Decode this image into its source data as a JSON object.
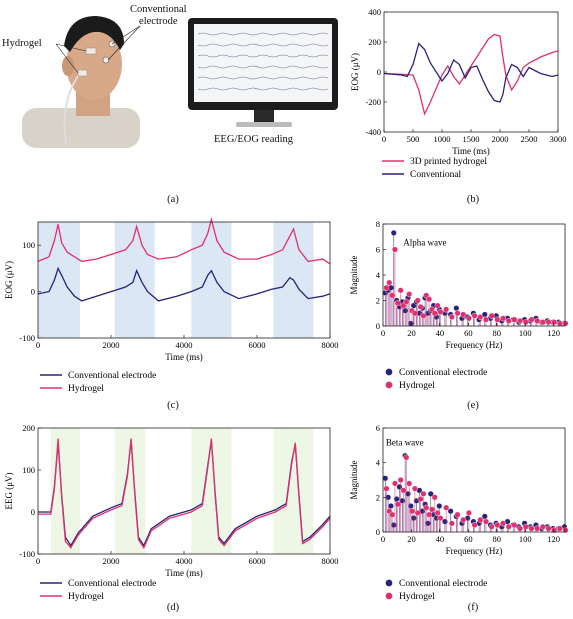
{
  "panel_a": {
    "label_hydrogel": "Hydrogel",
    "label_conventional": "Conventional\nelectrode",
    "label_reading": "EEG/EOG reading",
    "caption": "(a)"
  },
  "captions": {
    "b": "(b)",
    "c": "(c)",
    "d": "(d)",
    "e": "(e)",
    "f": "(f)"
  },
  "colors": {
    "pink": "#e0306e",
    "navy": "#28237a",
    "blue_band": "#dce7f6",
    "green_band": "#eef7e6"
  },
  "chart_data": [
    {
      "id": "b",
      "type": "line",
      "xlabel": "Time (ms)",
      "ylabel": "EOG (μV)",
      "xlim": [
        0,
        3000
      ],
      "ylim": [
        -400,
        400
      ],
      "xticks": [
        0,
        500,
        1000,
        1500,
        2000,
        2500,
        3000
      ],
      "yticks": [
        -400,
        -200,
        0,
        200,
        400
      ],
      "series": [
        {
          "name": "3D printed hydrogel",
          "color": "#e0306e",
          "x": [
            0,
            300,
            500,
            600,
            700,
            800,
            1000,
            1100,
            1200,
            1300,
            1400,
            1500,
            1600,
            1700,
            1800,
            1900,
            1950,
            2000,
            2050,
            2100,
            2200,
            2300,
            2400,
            2500,
            2700,
            2900,
            3000
          ],
          "y": [
            -10,
            -15,
            -20,
            -120,
            -280,
            -200,
            -20,
            40,
            -30,
            -80,
            -20,
            40,
            100,
            160,
            220,
            250,
            245,
            240,
            100,
            -20,
            -120,
            -60,
            30,
            60,
            100,
            130,
            140
          ]
        },
        {
          "name": "Conventional",
          "color": "#28237a",
          "x": [
            0,
            300,
            400,
            500,
            600,
            700,
            800,
            1000,
            1100,
            1200,
            1300,
            1400,
            1500,
            1600,
            1700,
            1800,
            1900,
            2000,
            2050,
            2100,
            2200,
            2300,
            2400,
            2500,
            2700,
            2900,
            3000
          ],
          "y": [
            -10,
            -20,
            -30,
            50,
            190,
            150,
            60,
            -60,
            -10,
            80,
            50,
            -40,
            30,
            40,
            -50,
            -130,
            -190,
            -200,
            -150,
            -40,
            50,
            30,
            -30,
            30,
            -10,
            -30,
            -20
          ]
        }
      ]
    },
    {
      "id": "c",
      "type": "line",
      "xlabel": "Time (ms)",
      "ylabel": "EOG (μV)",
      "xlim": [
        0,
        8000
      ],
      "ylim": [
        -100,
        150
      ],
      "xticks": [
        0,
        2000,
        4000,
        6000,
        8000
      ],
      "yticks": [
        -100,
        0,
        100
      ],
      "bands": [
        [
          0,
          1150
        ],
        [
          2100,
          3200
        ],
        [
          4200,
          5300
        ],
        [
          6450,
          7550
        ]
      ],
      "series": [
        {
          "name": "Conventional electrode",
          "color": "#28237a",
          "x": [
            0,
            300,
            450,
            550,
            650,
            800,
            1000,
            1200,
            1600,
            2000,
            2400,
            2600,
            2700,
            2850,
            3000,
            3300,
            3800,
            4200,
            4500,
            4650,
            4750,
            4900,
            5100,
            5500,
            6000,
            6400,
            6700,
            6900,
            7000,
            7150,
            7400,
            7800,
            8000
          ],
          "y": [
            -5,
            0,
            25,
            50,
            35,
            10,
            -10,
            -20,
            -10,
            0,
            10,
            20,
            45,
            20,
            0,
            -20,
            -10,
            0,
            10,
            35,
            45,
            20,
            0,
            -15,
            -5,
            5,
            10,
            30,
            25,
            5,
            -15,
            -10,
            -5
          ]
        },
        {
          "name": "Hydrogel",
          "color": "#e0306e",
          "x": [
            0,
            300,
            450,
            550,
            650,
            800,
            1000,
            1200,
            1600,
            2000,
            2400,
            2600,
            2700,
            2850,
            3000,
            3300,
            3800,
            4200,
            4500,
            4650,
            4750,
            4900,
            5100,
            5500,
            6000,
            6400,
            6700,
            6900,
            7000,
            7150,
            7400,
            7800,
            8000
          ],
          "y": [
            65,
            75,
            110,
            145,
            105,
            85,
            75,
            65,
            70,
            80,
            90,
            110,
            140,
            100,
            80,
            70,
            75,
            90,
            100,
            125,
            155,
            110,
            85,
            70,
            70,
            80,
            90,
            120,
            135,
            90,
            65,
            70,
            60
          ]
        }
      ]
    },
    {
      "id": "d",
      "type": "line",
      "xlabel": "Time (ms)",
      "ylabel": "EEG (μV)",
      "xlim": [
        0,
        8000
      ],
      "ylim": [
        -100,
        200
      ],
      "xticks": [
        0,
        2000,
        4000,
        6000,
        8000
      ],
      "yticks": [
        -100,
        0,
        100,
        200
      ],
      "bands": [
        [
          350,
          1150
        ],
        [
          2100,
          2950
        ],
        [
          4200,
          5300
        ],
        [
          6450,
          7550
        ]
      ],
      "series": [
        {
          "name": "Conventional electrode",
          "color": "#28237a",
          "x": [
            0,
            350,
            450,
            550,
            650,
            750,
            900,
            1100,
            1500,
            2000,
            2300,
            2450,
            2550,
            2650,
            2750,
            2900,
            3100,
            3600,
            4200,
            4500,
            4650,
            4750,
            4850,
            4950,
            5100,
            5400,
            6000,
            6500,
            6800,
            6950,
            7050,
            7150,
            7250,
            7450,
            7800,
            8000
          ],
          "y": [
            0,
            0,
            60,
            165,
            40,
            -60,
            -80,
            -50,
            -10,
            10,
            20,
            90,
            170,
            50,
            -60,
            -80,
            -40,
            -10,
            5,
            20,
            110,
            170,
            50,
            -60,
            -75,
            -40,
            -10,
            5,
            20,
            120,
            160,
            40,
            -70,
            -60,
            -30,
            -10
          ]
        },
        {
          "name": "Hydrogel",
          "color": "#e0306e",
          "x": [
            0,
            350,
            450,
            550,
            650,
            750,
            900,
            1100,
            1500,
            2000,
            2300,
            2450,
            2550,
            2650,
            2750,
            2900,
            3100,
            3600,
            4200,
            4500,
            4650,
            4750,
            4850,
            4950,
            5100,
            5400,
            6000,
            6500,
            6800,
            6950,
            7050,
            7150,
            7250,
            7450,
            7800,
            8000
          ],
          "y": [
            -5,
            -5,
            55,
            175,
            35,
            -70,
            -85,
            -55,
            -15,
            5,
            15,
            85,
            175,
            45,
            -65,
            -85,
            -45,
            -15,
            0,
            15,
            105,
            175,
            45,
            -65,
            -80,
            -45,
            -15,
            0,
            15,
            115,
            165,
            35,
            -75,
            -65,
            -35,
            -15
          ]
        }
      ]
    },
    {
      "id": "e",
      "type": "scatter",
      "xlabel": "Frequency (Hz)",
      "ylabel": "Magnitude",
      "xlim": [
        0,
        128
      ],
      "ylim": [
        0,
        8
      ],
      "xticks": [
        0,
        20,
        40,
        60,
        80,
        100,
        120
      ],
      "yticks": [
        0,
        2,
        4,
        6,
        8
      ],
      "annotation": "Alpha wave",
      "series": [
        {
          "name": "Conventional electrode",
          "color": "#28237a",
          "x": [
            2,
            4,
            6,
            8,
            10,
            12,
            14,
            16,
            18,
            20,
            22,
            24,
            26,
            28,
            30,
            32,
            34,
            36,
            38,
            40,
            44,
            48,
            52,
            56,
            60,
            64,
            68,
            72,
            76,
            80,
            84,
            88,
            92,
            96,
            100,
            104,
            108,
            112,
            116,
            120,
            124,
            128
          ],
          "y": [
            2.6,
            2.8,
            3.0,
            7.3,
            2.0,
            1.5,
            1.9,
            1.2,
            2.2,
            0.2,
            1.6,
            1.9,
            1.0,
            1.4,
            2.2,
            1.0,
            1.2,
            1.6,
            0.7,
            1.3,
            1.0,
            0.9,
            1.4,
            0.6,
            0.7,
            1.0,
            0.5,
            0.9,
            0.6,
            0.8,
            0.4,
            0.6,
            0.5,
            0.3,
            0.5,
            0.4,
            0.6,
            0.3,
            0.4,
            0.3,
            0.3,
            0.2
          ]
        },
        {
          "name": "Hydrogel",
          "color": "#e0306e",
          "x": [
            2,
            4,
            6,
            8,
            10,
            12,
            14,
            16,
            18,
            20,
            22,
            24,
            26,
            28,
            30,
            32,
            34,
            36,
            38,
            40,
            44,
            48,
            52,
            56,
            60,
            64,
            68,
            72,
            76,
            80,
            84,
            88,
            92,
            96,
            100,
            104,
            108,
            112,
            116,
            120,
            124,
            128
          ],
          "y": [
            3.0,
            3.4,
            2.4,
            6.0,
            1.8,
            2.8,
            1.6,
            1.9,
            2.5,
            1.2,
            1.0,
            2.0,
            1.5,
            0.8,
            2.4,
            2.1,
            1.3,
            1.0,
            1.6,
            1.1,
            1.3,
            0.7,
            1.0,
            0.9,
            0.6,
            0.8,
            0.7,
            0.5,
            0.8,
            0.5,
            0.6,
            0.4,
            0.5,
            0.4,
            0.3,
            0.5,
            0.4,
            0.3,
            0.3,
            0.3,
            0.2,
            0.2
          ]
        }
      ]
    },
    {
      "id": "f",
      "type": "scatter",
      "xlabel": "Frequency (Hz)",
      "ylabel": "Magnitude",
      "xlim": [
        0,
        128
      ],
      "ylim": [
        0,
        6
      ],
      "xticks": [
        0,
        20,
        40,
        60,
        80,
        100,
        120
      ],
      "yticks": [
        0,
        2,
        4,
        6
      ],
      "annotation": "Beta wave",
      "series": [
        {
          "name": "Conventional electrode",
          "color": "#28237a",
          "x": [
            2,
            4,
            6,
            8,
            10,
            12,
            14,
            16,
            18,
            20,
            22,
            24,
            26,
            28,
            30,
            32,
            34,
            36,
            38,
            40,
            44,
            48,
            52,
            56,
            60,
            64,
            68,
            72,
            76,
            80,
            84,
            88,
            92,
            96,
            100,
            104,
            108,
            112,
            116,
            120,
            124,
            128
          ],
          "y": [
            3.1,
            2.0,
            1.5,
            0.4,
            1.9,
            2.6,
            1.8,
            4.4,
            2.2,
            1.5,
            0.8,
            1.8,
            2.4,
            1.2,
            1.6,
            0.5,
            2.2,
            1.0,
            0.8,
            1.5,
            0.6,
            1.2,
            0.9,
            0.5,
            0.8,
            0.6,
            0.5,
            0.9,
            0.4,
            0.5,
            0.3,
            0.6,
            0.4,
            0.3,
            0.5,
            0.3,
            0.4,
            0.2,
            0.3,
            0.2,
            0.2,
            0.3
          ]
        },
        {
          "name": "Hydrogel",
          "color": "#e0306e",
          "x": [
            2,
            4,
            6,
            8,
            10,
            12,
            14,
            16,
            18,
            20,
            22,
            24,
            26,
            28,
            30,
            32,
            34,
            36,
            38,
            40,
            44,
            48,
            52,
            56,
            60,
            64,
            68,
            72,
            76,
            80,
            84,
            88,
            92,
            96,
            100,
            104,
            108,
            112,
            116,
            120,
            124,
            128
          ],
          "y": [
            2.5,
            1.2,
            1.0,
            2.8,
            1.6,
            3.0,
            2.4,
            4.3,
            2.8,
            1.2,
            2.5,
            1.1,
            1.9,
            2.2,
            1.4,
            1.0,
            1.3,
            2.0,
            1.1,
            0.8,
            1.4,
            0.5,
            1.0,
            0.7,
            1.1,
            0.4,
            0.7,
            0.6,
            0.3,
            0.4,
            0.5,
            0.3,
            0.4,
            0.2,
            0.3,
            0.2,
            0.2,
            0.3,
            0.2,
            0.1,
            0.2,
            0.1
          ]
        }
      ]
    }
  ]
}
